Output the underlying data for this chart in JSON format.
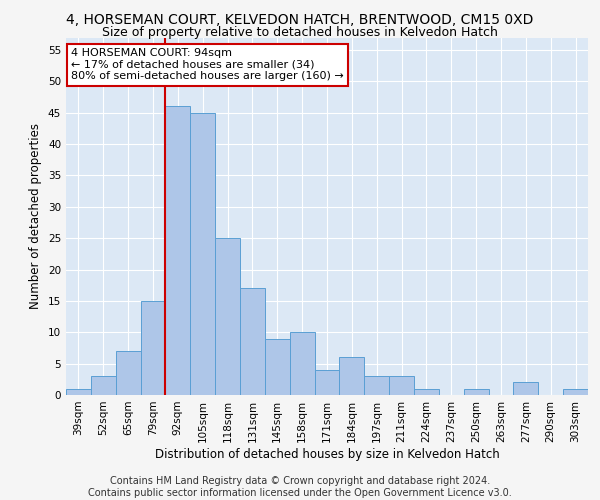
{
  "title": "4, HORSEMAN COURT, KELVEDON HATCH, BRENTWOOD, CM15 0XD",
  "subtitle": "Size of property relative to detached houses in Kelvedon Hatch",
  "xlabel": "Distribution of detached houses by size in Kelvedon Hatch",
  "ylabel": "Number of detached properties",
  "categories": [
    "39sqm",
    "52sqm",
    "65sqm",
    "79sqm",
    "92sqm",
    "105sqm",
    "118sqm",
    "131sqm",
    "145sqm",
    "158sqm",
    "171sqm",
    "184sqm",
    "197sqm",
    "211sqm",
    "224sqm",
    "237sqm",
    "250sqm",
    "263sqm",
    "277sqm",
    "290sqm",
    "303sqm"
  ],
  "values": [
    1,
    3,
    7,
    15,
    46,
    45,
    25,
    17,
    9,
    10,
    4,
    6,
    3,
    3,
    1,
    0,
    1,
    0,
    2,
    0,
    1
  ],
  "bar_color": "#aec6e8",
  "bar_edge_color": "#5a9fd4",
  "vline_x_index": 4,
  "vline_color": "#cc0000",
  "annotation_text": "4 HORSEMAN COURT: 94sqm\n← 17% of detached houses are smaller (34)\n80% of semi-detached houses are larger (160) →",
  "annotation_box_color": "#ffffff",
  "annotation_box_edge": "#cc0000",
  "ylim": [
    0,
    57
  ],
  "yticks": [
    0,
    5,
    10,
    15,
    20,
    25,
    30,
    35,
    40,
    45,
    50,
    55
  ],
  "footer1": "Contains HM Land Registry data © Crown copyright and database right 2024.",
  "footer2": "Contains public sector information licensed under the Open Government Licence v3.0.",
  "bg_color": "#dce8f5",
  "grid_color": "#ffffff",
  "title_fontsize": 10,
  "subtitle_fontsize": 9,
  "axis_label_fontsize": 8.5,
  "tick_fontsize": 7.5,
  "annotation_fontsize": 8,
  "footer_fontsize": 7
}
